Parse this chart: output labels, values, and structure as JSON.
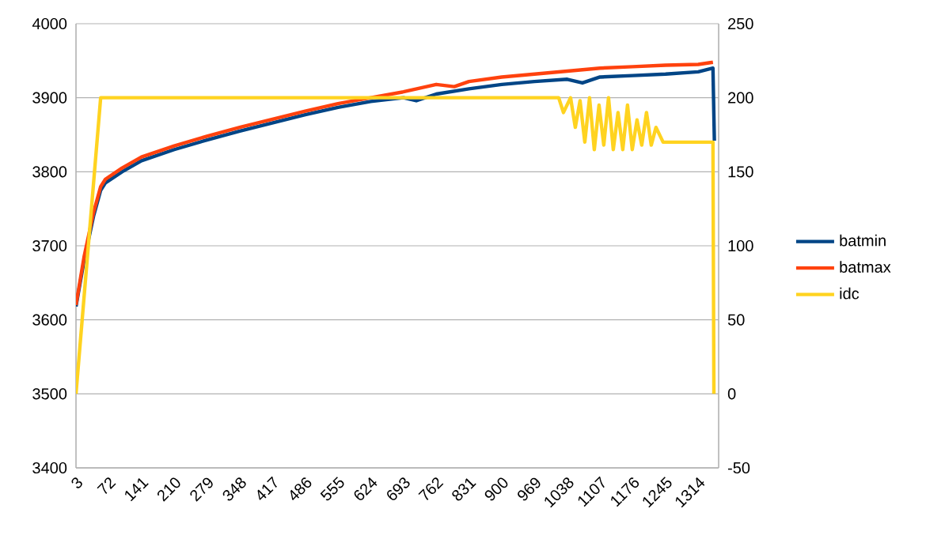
{
  "chart_data": {
    "type": "line",
    "legend": "right",
    "grid": "y",
    "line_style": "solid",
    "xlim": [
      3,
      1357
    ],
    "xticks": [
      3,
      72,
      141,
      210,
      279,
      348,
      417,
      486,
      555,
      624,
      693,
      762,
      831,
      900,
      969,
      1038,
      1107,
      1176,
      1245,
      1314
    ],
    "ylim": [
      3400,
      4000
    ],
    "yticks": [
      3400,
      3500,
      3600,
      3700,
      3800,
      3900,
      4000
    ],
    "y2lim": [
      -50,
      250
    ],
    "y2ticks": [
      -50,
      0,
      50,
      100,
      150,
      200,
      250
    ],
    "series": [
      {
        "name": "batmin",
        "color": "#004586",
        "x": [
          3,
          20,
          40,
          55,
          65,
          100,
          141,
          210,
          279,
          348,
          417,
          486,
          555,
          624,
          693,
          720,
          762,
          831,
          900,
          969,
          1038,
          1070,
          1107,
          1176,
          1245,
          1314,
          1345,
          1348
        ],
        "values": [
          3618,
          3680,
          3740,
          3775,
          3785,
          3800,
          3815,
          3830,
          3843,
          3855,
          3866,
          3877,
          3887,
          3895,
          3900,
          3896,
          3905,
          3912,
          3918,
          3922,
          3925,
          3920,
          3928,
          3930,
          3932,
          3935,
          3940,
          3842
        ]
      },
      {
        "name": "batmax",
        "color": "#ff420e",
        "x": [
          3,
          20,
          40,
          55,
          65,
          100,
          141,
          210,
          279,
          348,
          417,
          486,
          555,
          624,
          693,
          762,
          800,
          831,
          900,
          969,
          1038,
          1107,
          1176,
          1245,
          1314,
          1345
        ],
        "values": [
          3620,
          3685,
          3745,
          3780,
          3790,
          3805,
          3820,
          3835,
          3848,
          3860,
          3871,
          3882,
          3892,
          3900,
          3908,
          3918,
          3915,
          3922,
          3928,
          3932,
          3936,
          3940,
          3942,
          3944,
          3945,
          3948
        ]
      },
      {
        "name": "idc",
        "color": "#ffd320",
        "axis": "y2",
        "x": [
          3,
          55,
          1020,
          1030,
          1045,
          1055,
          1065,
          1075,
          1085,
          1095,
          1105,
          1115,
          1125,
          1135,
          1145,
          1155,
          1165,
          1175,
          1185,
          1195,
          1205,
          1215,
          1225,
          1240,
          1260,
          1345,
          1347
        ],
        "values": [
          0,
          200,
          200,
          190,
          200,
          180,
          198,
          170,
          200,
          165,
          195,
          168,
          200,
          165,
          190,
          165,
          195,
          165,
          185,
          168,
          190,
          168,
          180,
          170,
          170,
          170,
          0
        ]
      }
    ]
  }
}
